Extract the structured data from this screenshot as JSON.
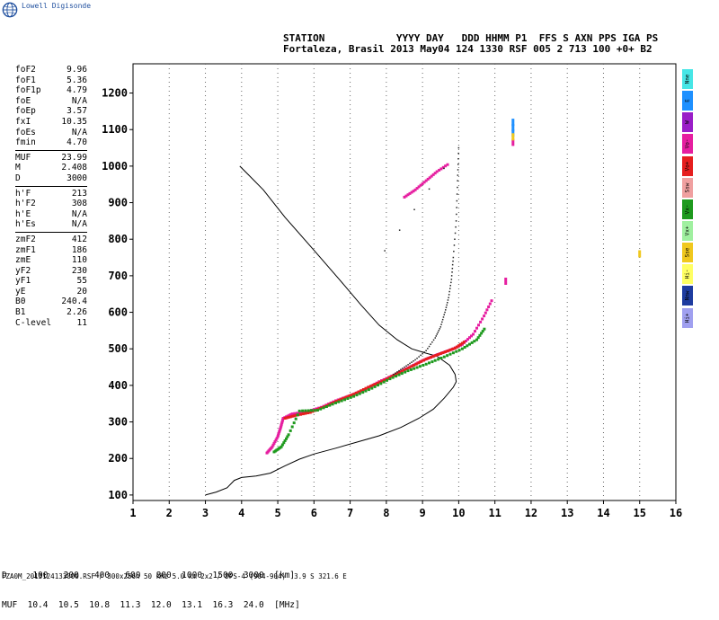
{
  "logo": {
    "text": "Lowell Digisonde"
  },
  "header": {
    "line1": "STATION            YYYY DAY   DDD HHMM P1  FFS S AXN PPS IGA PS",
    "line2": "Fortaleza, Brasil 2013 May04 124 1330 RSF 005 2 713 100 +0+ B2"
  },
  "params": {
    "group1": [
      {
        "k": "foF2",
        "v": "9.96"
      },
      {
        "k": "foF1",
        "v": "5.36"
      },
      {
        "k": "foF1p",
        "v": "4.79"
      },
      {
        "k": "foE",
        "v": "N/A"
      },
      {
        "k": "foEp",
        "v": "3.57"
      },
      {
        "k": "fxI",
        "v": "10.35"
      },
      {
        "k": "foEs",
        "v": "N/A"
      },
      {
        "k": "fmin",
        "v": "4.70"
      }
    ],
    "group2": [
      {
        "k": "MUF",
        "v": "23.99"
      },
      {
        "k": "M",
        "v": "2.408"
      },
      {
        "k": "D",
        "v": "3000"
      }
    ],
    "group3": [
      {
        "k": "h'F",
        "v": "213"
      },
      {
        "k": "h'F2",
        "v": "308"
      },
      {
        "k": "h'E",
        "v": "N/A"
      },
      {
        "k": "h'Es",
        "v": "N/A"
      }
    ],
    "group4": [
      {
        "k": "zmF2",
        "v": "412"
      },
      {
        "k": "zmF1",
        "v": "186"
      },
      {
        "k": "zmE",
        "v": "110"
      },
      {
        "k": "yF2",
        "v": "230"
      },
      {
        "k": "yF1",
        "v": "55"
      },
      {
        "k": "yE",
        "v": "20"
      },
      {
        "k": "B0",
        "v": "240.4"
      },
      {
        "k": "B1",
        "v": "2.26"
      },
      {
        "k": "C-level",
        "v": "11"
      }
    ]
  },
  "legend": [
    {
      "label": "Nne",
      "color": "#46e6e6"
    },
    {
      "label": "E",
      "color": "#1e90ff"
    },
    {
      "label": "W",
      "color": "#9a1ec8"
    },
    {
      "label": "Vo-",
      "color": "#e61ea0"
    },
    {
      "label": "Vo+",
      "color": "#e61e1e"
    },
    {
      "label": "Ssw",
      "color": "#f0a0a0"
    },
    {
      "label": "Vx-",
      "color": "#1e9a1e"
    },
    {
      "label": "Vx+",
      "color": "#a0f0a0"
    },
    {
      "label": "Sse",
      "color": "#f0c81e"
    },
    {
      "label": "Hi-",
      "color": "#ffff64"
    },
    {
      "label": "Nnw",
      "color": "#1e3ca0"
    },
    {
      "label": "Hi+",
      "color": "#a0a0f0"
    }
  ],
  "dtable": {
    "row1": "D     100   200   400   600   800  1000  1500  3000  [km]",
    "row2": "MUF  10.4  10.5  10.8  11.3  12.0  13.1  16.3  24.0  [MHz]"
  },
  "footer": "FZA0M_2013124133000.RSF / 300x256h 50 kHz 5.0 km 2x2 / DPS-4 (904-904)  3.9 S 321.6 E",
  "chart_data": {
    "type": "scatter",
    "xlim": [
      1,
      16
    ],
    "ylim": [
      85,
      1280
    ],
    "xticks": [
      1,
      2,
      3,
      4,
      5,
      6,
      7,
      8,
      9,
      10,
      11,
      12,
      13,
      14,
      15,
      16
    ],
    "yticks": [
      100,
      200,
      300,
      400,
      500,
      600,
      700,
      800,
      900,
      1000,
      1100,
      1200
    ],
    "grid": "dotted vertical",
    "profile": [
      [
        3.0,
        100
      ],
      [
        3.3,
        108
      ],
      [
        3.6,
        120
      ],
      [
        3.8,
        140
      ],
      [
        4.0,
        148
      ],
      [
        4.4,
        152
      ],
      [
        4.8,
        160
      ],
      [
        5.2,
        180
      ],
      [
        5.6,
        198
      ],
      [
        6.0,
        212
      ],
      [
        6.6,
        228
      ],
      [
        7.2,
        245
      ],
      [
        7.8,
        262
      ],
      [
        8.4,
        285
      ],
      [
        8.9,
        310
      ],
      [
        9.3,
        335
      ],
      [
        9.6,
        365
      ],
      [
        9.85,
        395
      ],
      [
        9.93,
        410
      ],
      [
        9.9,
        430
      ],
      [
        9.75,
        455
      ],
      [
        9.4,
        480
      ],
      [
        9.1,
        488
      ],
      [
        8.7,
        500
      ],
      [
        8.3,
        525
      ],
      [
        7.8,
        565
      ],
      [
        7.3,
        620
      ],
      [
        6.7,
        690
      ],
      [
        6.0,
        770
      ],
      [
        5.2,
        860
      ],
      [
        4.6,
        935
      ],
      [
        4.2,
        975
      ],
      [
        3.95,
        1000
      ]
    ],
    "traces": [
      {
        "name": "Vo-",
        "color": "#e61ea0",
        "points": [
          [
            4.7,
            215
          ],
          [
            4.85,
            232
          ],
          [
            5.0,
            260
          ],
          [
            5.08,
            285
          ],
          [
            5.15,
            310
          ],
          [
            5.4,
            322
          ],
          [
            5.8,
            328
          ],
          [
            6.2,
            340
          ],
          [
            6.6,
            358
          ],
          [
            7.0,
            372
          ],
          [
            7.4,
            388
          ],
          [
            7.8,
            410
          ],
          [
            8.2,
            428
          ],
          [
            8.6,
            448
          ],
          [
            9.0,
            468
          ],
          [
            9.4,
            484
          ],
          [
            9.8,
            498
          ],
          [
            10.1,
            512
          ],
          [
            10.4,
            540
          ],
          [
            10.7,
            590
          ],
          [
            10.95,
            640
          ]
        ]
      },
      {
        "name": "Vo+",
        "color": "#e61e1e",
        "points": [
          [
            5.2,
            310
          ],
          [
            5.5,
            318
          ],
          [
            5.9,
            326
          ],
          [
            6.3,
            342
          ],
          [
            6.7,
            360
          ],
          [
            7.1,
            376
          ],
          [
            7.5,
            395
          ],
          [
            7.9,
            412
          ],
          [
            8.3,
            432
          ],
          [
            8.7,
            452
          ],
          [
            9.1,
            472
          ],
          [
            9.5,
            487
          ],
          [
            9.9,
            502
          ],
          [
            10.2,
            522
          ]
        ]
      },
      {
        "name": "Vx-",
        "color": "#1e9a1e",
        "points": [
          [
            4.9,
            218
          ],
          [
            5.1,
            232
          ],
          [
            5.3,
            265
          ],
          [
            5.6,
            330
          ],
          [
            6.1,
            332
          ],
          [
            6.6,
            352
          ],
          [
            7.1,
            370
          ],
          [
            7.6,
            392
          ],
          [
            8.1,
            418
          ],
          [
            8.6,
            440
          ],
          [
            9.1,
            458
          ],
          [
            9.6,
            478
          ],
          [
            10.1,
            500
          ],
          [
            10.5,
            525
          ],
          [
            10.75,
            560
          ]
        ]
      },
      {
        "name": "Vo- upper",
        "color": "#e61ea0",
        "points": [
          [
            8.5,
            915
          ],
          [
            8.8,
            935
          ],
          [
            9.1,
            960
          ],
          [
            9.4,
            985
          ],
          [
            9.75,
            1008
          ]
        ]
      },
      {
        "name": "Vo+ late",
        "color": "#e61ea0",
        "points": [
          [
            11.3,
            685
          ],
          [
            11.5,
            1065
          ]
        ]
      },
      {
        "name": "N spread",
        "color": "#1e90ff",
        "points": [
          [
            11.5,
            1120
          ],
          [
            11.5,
            1105
          ],
          [
            11.5,
            1090
          ]
        ]
      },
      {
        "name": "Sse dot",
        "color": "#f0c81e",
        "points": [
          [
            15.0,
            760
          ],
          [
            11.5,
            1080
          ]
        ]
      },
      {
        "name": "Ordinary trace",
        "color": "#222222",
        "points": [
          [
            8.2,
            430
          ],
          [
            8.5,
            450
          ],
          [
            8.8,
            470
          ],
          [
            9.1,
            495
          ],
          [
            9.35,
            530
          ],
          [
            9.5,
            560
          ],
          [
            9.62,
            600
          ],
          [
            9.72,
            640
          ],
          [
            9.8,
            690
          ],
          [
            9.85,
            750
          ],
          [
            9.93,
            850
          ],
          [
            9.97,
            960
          ],
          [
            10.0,
            1050
          ],
          [
            7.55,
            712
          ]
        ]
      }
    ]
  }
}
